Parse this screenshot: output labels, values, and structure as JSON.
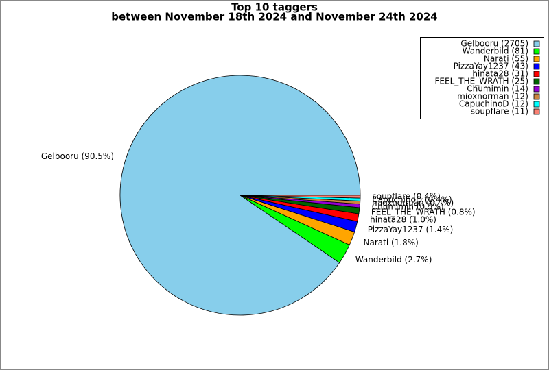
{
  "chart_data": {
    "type": "pie",
    "title": "Top 10 taggers",
    "subtitle": "between November 18th 2024 and November 24th 2024",
    "categories": [
      "Gelbooru",
      "Wanderbild",
      "Narati",
      "PizzaYay1237",
      "hinata28",
      "FEEL_THE_WRATH",
      "Chumimin",
      "mioxnorman",
      "CapuchinoD",
      "soupflare"
    ],
    "values": [
      2705,
      81,
      55,
      43,
      31,
      25,
      14,
      12,
      12,
      11
    ],
    "value_labels": [
      "Gelbooru (90.5%)",
      "Wanderbild (2.7%)",
      "Narati (1.8%)",
      "PizzaYay1237 (1.4%)",
      "hinata28 (1.0%)",
      "FEEL_THE_WRATH (0.8%)",
      "Chumimin (0.5%)",
      "mioxnorman (0.4%)",
      "CapuchinoD (0.4%)",
      "soupflare (0.4%)"
    ],
    "legend_labels": [
      "Gelbooru (2705)",
      "Wanderbild (81)",
      "Narati (55)",
      "PizzaYay1237 (43)",
      "hinata28 (31)",
      "FEEL_THE_WRATH (25)",
      "Chumimin (14)",
      "mioxnorman (12)",
      "CapuchinoD (12)",
      "soupflare (11)"
    ],
    "colors": [
      "#87ceeb",
      "#00ff00",
      "#ffa500",
      "#0000ff",
      "#ff0000",
      "#006400",
      "#9400d3",
      "#cd853f",
      "#00ffff",
      "#fa8072"
    ],
    "legend": "upper right"
  }
}
